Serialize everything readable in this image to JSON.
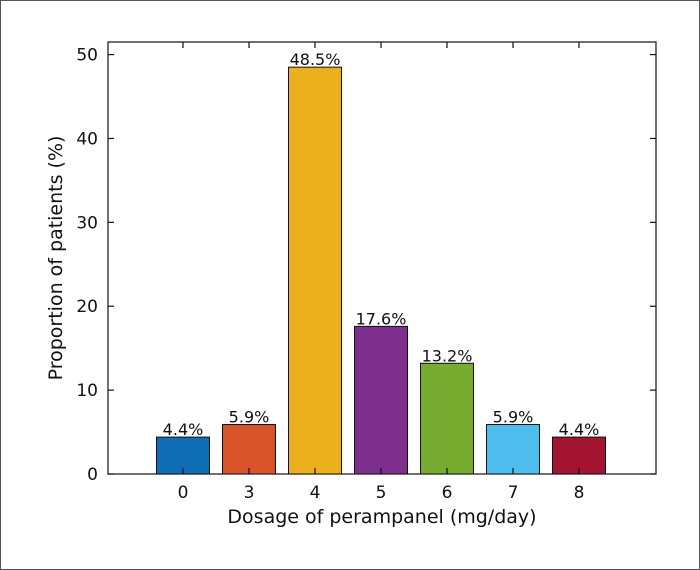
{
  "chart_data": {
    "type": "bar",
    "categories": [
      "0",
      "3",
      "4",
      "5",
      "6",
      "7",
      "8"
    ],
    "values": [
      4.4,
      5.9,
      48.5,
      17.6,
      13.2,
      5.9,
      4.4
    ],
    "data_labels": [
      "4.4%",
      "5.9%",
      "48.5%",
      "17.6%",
      "13.2%",
      "5.9%",
      "4.4%"
    ],
    "colors": [
      "#0f6db5",
      "#d9532a",
      "#ecb01f",
      "#7e2f8e",
      "#77ac30",
      "#4dbeee",
      "#a2142f"
    ],
    "xlabel": "Dosage of perampanel (mg/day)",
    "ylabel": "Proportion of patients (%)",
    "ylim": [
      0,
      51.5
    ],
    "yticks": [
      0,
      10,
      20,
      30,
      40,
      50
    ],
    "grid": false,
    "legend": "none"
  }
}
